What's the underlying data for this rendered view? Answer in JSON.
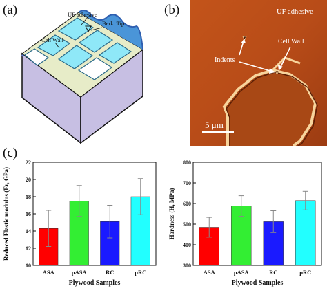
{
  "panels": {
    "a": {
      "label": "(a)",
      "texts": {
        "adhesive": "UF adhesive",
        "tip": "Berk. Tip",
        "wall": "Cell Wall"
      }
    },
    "b": {
      "label": "(b)",
      "texts": {
        "title": "UF adhesive",
        "indents": "Indents",
        "wall": "Cell Wall",
        "scale": "5 μm"
      }
    },
    "c": {
      "label": "(c)"
    }
  },
  "colors": {
    "ASA": "#ff0000",
    "pASA": "#33ee33",
    "RC": "#1a1aff",
    "pRC": "#22ffff"
  },
  "chart_data": [
    {
      "type": "bar",
      "categories": [
        "ASA",
        "pASA",
        "RC",
        "pRC"
      ],
      "values": [
        14.3,
        17.5,
        15.1,
        18.0
      ],
      "errors": [
        2.1,
        1.8,
        1.9,
        2.1
      ],
      "xlabel": "Plywood Samples",
      "ylabel": "Reduced Elastic modulus (Er, GPa)",
      "ylim": [
        10,
        22
      ],
      "yticks": [
        "10",
        "12",
        "14",
        "16",
        "18",
        "20",
        "22"
      ]
    },
    {
      "type": "bar",
      "categories": [
        "ASA",
        "pASA",
        "RC",
        "pRC"
      ],
      "values": [
        485,
        588,
        512,
        614
      ],
      "errors": [
        48,
        50,
        53,
        45
      ],
      "xlabel": "Plywood Samples",
      "ylabel": "Hardness (H, MPa)",
      "ylim": [
        300,
        800
      ],
      "yticks": [
        "300",
        "400",
        "500",
        "600",
        "700",
        "800"
      ]
    }
  ]
}
